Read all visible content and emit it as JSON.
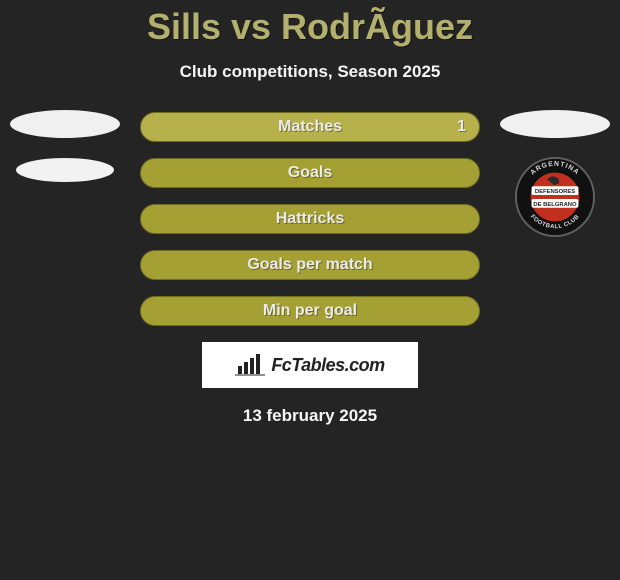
{
  "header": {
    "title": "Sills vs RodrÃ­guez",
    "subtitle": "Club competitions, Season 2025"
  },
  "stats": {
    "bars": [
      {
        "label": "Matches",
        "value_right": "1",
        "lighter": true
      },
      {
        "label": "Goals",
        "value_right": "",
        "lighter": false
      },
      {
        "label": "Hattricks",
        "value_right": "",
        "lighter": false
      },
      {
        "label": "Goals per match",
        "value_right": "",
        "lighter": false
      },
      {
        "label": "Min per goal",
        "value_right": "",
        "lighter": false
      }
    ],
    "bar_color": "#a5a033",
    "bar_color_lighter": "#b6b14a",
    "bar_border": "#706d22"
  },
  "branding": {
    "logo_text": "FcTables.com"
  },
  "footer": {
    "date_text": "13 february 2025"
  },
  "club_badge": {
    "outer_ring_fill": "#111111",
    "outer_ring_stroke": "#616161",
    "inner_circle_fill": "#c1301f",
    "ribbon_fill": "#ffffff",
    "ribbon_text_top": "DEFENSORES",
    "ribbon_text_bottom": "DE BELGRANO",
    "ring_text_top": "ARGENTINA",
    "ring_text_bottom": "FOOTBALL CLUB",
    "ring_text_color": "#dedede"
  },
  "colors": {
    "page_bg": "#242424",
    "title_color": "#b3b06e",
    "text_color": "#f5f5f5"
  }
}
